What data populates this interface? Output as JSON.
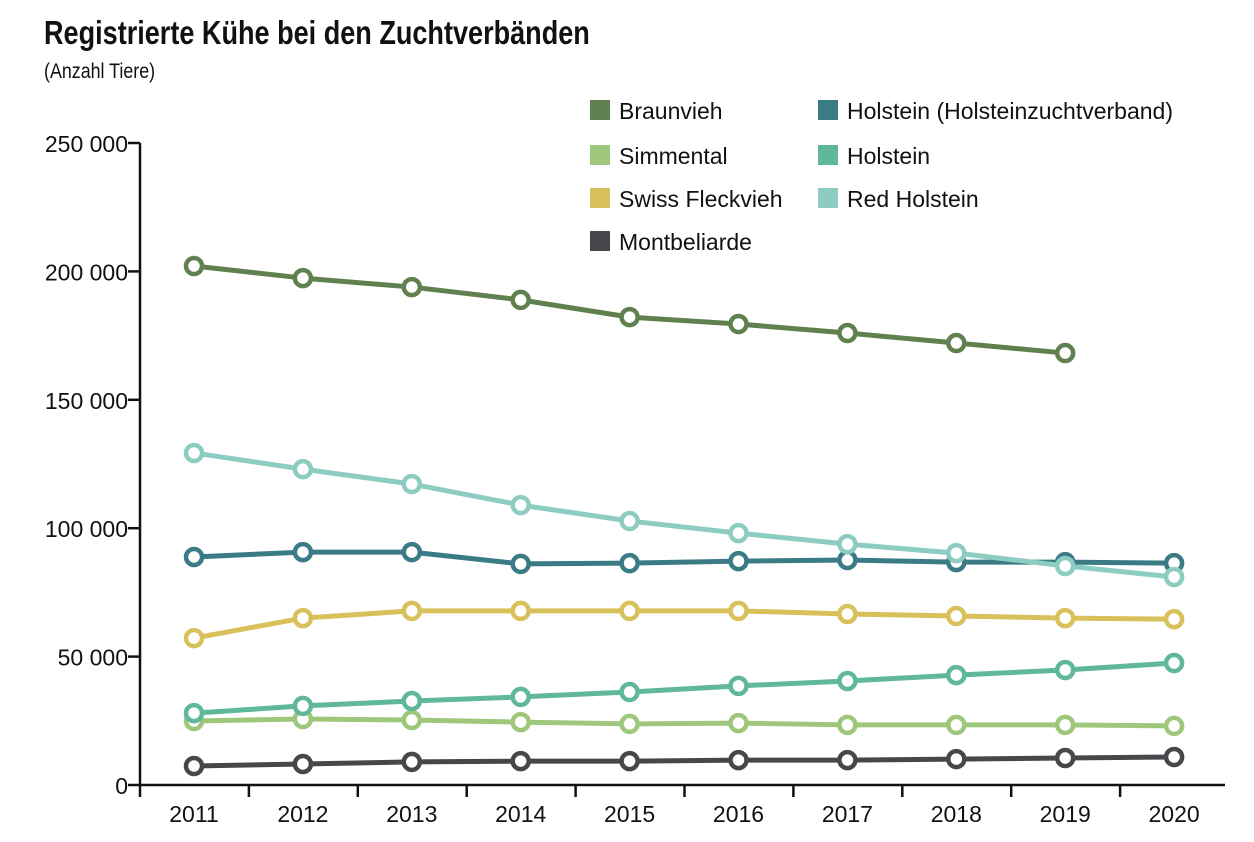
{
  "chart_data": {
    "type": "line",
    "title": "Registrierte Kühe bei den Zuchtverbänden",
    "subtitle": "(Anzahl Tiere)",
    "xlabel": "",
    "ylabel": "",
    "ylim": [
      0,
      250000
    ],
    "yticks": [
      0,
      50000,
      100000,
      150000,
      200000,
      250000
    ],
    "ytick_labels": [
      "0",
      "50 000",
      "100 000",
      "150 000",
      "200 000",
      "250 000"
    ],
    "grid": false,
    "legend_position": "top-right",
    "x": [
      "2011",
      "2012",
      "2013",
      "2014",
      "2015",
      "2016",
      "2017",
      "2018",
      "2019",
      "2020"
    ],
    "series": [
      {
        "name": "Braunvieh",
        "color": "#60804f",
        "values": [
          202100,
          197400,
          193900,
          188900,
          182200,
          179500,
          176000,
          172100,
          168200,
          null
        ]
      },
      {
        "name": "Simmental",
        "color": "#9ec77c",
        "values": [
          24900,
          25700,
          25300,
          24500,
          23800,
          24100,
          23400,
          23400,
          23400,
          23000
        ]
      },
      {
        "name": "Swiss Fleckvieh",
        "color": "#d8c15a",
        "values": [
          57200,
          65000,
          67800,
          67800,
          67800,
          67800,
          66600,
          65800,
          65000,
          64600
        ]
      },
      {
        "name": "Montbeliarde",
        "color": "#45474a",
        "values": [
          7400,
          8200,
          9000,
          9300,
          9300,
          9700,
          9700,
          10100,
          10500,
          10900
        ]
      },
      {
        "name": "Holstein (Holsteinzuchtverband)",
        "color": "#3b7b86",
        "values": [
          88800,
          90700,
          90700,
          86100,
          86400,
          87200,
          87600,
          86800,
          86800,
          86400
        ]
      },
      {
        "name": "Holstein",
        "color": "#5fb79c",
        "values": [
          28000,
          30800,
          32700,
          34300,
          36200,
          38600,
          40500,
          42800,
          44800,
          47500
        ]
      },
      {
        "name": "Red Holstein",
        "color": "#8dccc0",
        "values": [
          129300,
          123000,
          117200,
          109000,
          102800,
          98100,
          93800,
          90300,
          85300,
          81000
        ]
      }
    ]
  }
}
